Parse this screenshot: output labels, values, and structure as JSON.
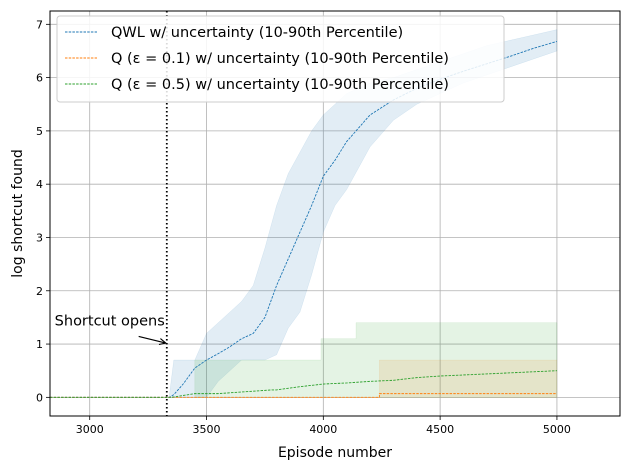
{
  "chart_data": {
    "type": "line",
    "xlabel": "Episode number",
    "ylabel": "log shortcut found",
    "xlim": [
      2830,
      5270
    ],
    "ylim": [
      -0.35,
      7.25
    ],
    "xticks": [
      3000,
      3500,
      4000,
      4500,
      5000
    ],
    "yticks": [
      0,
      1,
      2,
      3,
      4,
      5,
      6,
      7
    ],
    "grid": true,
    "legend_position": "top-left",
    "vline": {
      "x": 3330,
      "style": "dotted",
      "color": "#000000"
    },
    "annotation": {
      "text": "Shortcut opens",
      "x": 3330,
      "y": 1.0,
      "text_x": 2850,
      "text_y": 1.35
    },
    "series": [
      {
        "name": "QWL w/ uncertainty (10-90th Percentile)",
        "color": "#1f77b4",
        "x": [
          2830,
          3340,
          3360,
          3400,
          3450,
          3500,
          3550,
          3600,
          3650,
          3700,
          3750,
          3800,
          3850,
          3900,
          3950,
          4000,
          4050,
          4100,
          4150,
          4200,
          4300,
          4400,
          4500,
          4600,
          4700,
          4800,
          4900,
          5000
        ],
        "y": [
          0,
          0,
          0.05,
          0.25,
          0.55,
          0.7,
          0.82,
          0.95,
          1.1,
          1.2,
          1.5,
          2.1,
          2.6,
          3.1,
          3.6,
          4.15,
          4.45,
          4.8,
          5.05,
          5.3,
          5.58,
          5.8,
          5.97,
          6.12,
          6.26,
          6.4,
          6.55,
          6.68
        ],
        "band_x": [
          3340,
          3360,
          3400,
          3450,
          3500,
          3550,
          3600,
          3650,
          3700,
          3750,
          3800,
          3850,
          3900,
          3950,
          4000,
          4050,
          4100,
          4150,
          4200,
          4300,
          4400,
          4500,
          4600,
          4700,
          4800,
          4900,
          5000
        ],
        "band_low": [
          0,
          0,
          0,
          0,
          0,
          0.3,
          0.5,
          0.7,
          0.7,
          0.7,
          0.8,
          1.3,
          1.6,
          2.3,
          3.1,
          3.6,
          3.9,
          4.3,
          4.7,
          5.2,
          5.5,
          5.7,
          5.9,
          6.05,
          6.2,
          6.35,
          6.5
        ],
        "band_high": [
          0,
          0.7,
          0.7,
          0.7,
          1.2,
          1.4,
          1.6,
          1.8,
          2.1,
          2.8,
          3.6,
          4.2,
          4.6,
          5.0,
          5.3,
          5.5,
          5.7,
          5.8,
          5.9,
          6.0,
          6.15,
          6.3,
          6.45,
          6.6,
          6.7,
          6.8,
          6.9
        ]
      },
      {
        "name": "Q (ε = 0.1) w/ uncertainty (10-90th Percentile)",
        "color": "#ff7f0e",
        "x": [
          2830,
          4240,
          4240,
          5000
        ],
        "y": [
          0,
          0,
          0.07,
          0.07
        ],
        "band_x": [
          3450,
          4240,
          4240,
          5000
        ],
        "band_low": [
          0,
          0,
          0,
          0
        ],
        "band_high": [
          0,
          0,
          0.7,
          0.7
        ]
      },
      {
        "name": "Q (ε = 0.5) w/ uncertainty (10-90th Percentile)",
        "color": "#2ca02c",
        "x": [
          2830,
          3350,
          3450,
          3550,
          3780,
          3800,
          3900,
          4000,
          4100,
          4200,
          4300,
          4400,
          4500,
          4600,
          4700,
          4800,
          4900,
          5000
        ],
        "y": [
          0,
          0,
          0.07,
          0.07,
          0.14,
          0.14,
          0.2,
          0.25,
          0.27,
          0.3,
          0.32,
          0.37,
          0.4,
          0.42,
          0.44,
          0.46,
          0.48,
          0.5
        ],
        "band_x": [
          3450,
          3450,
          3780,
          3780,
          3990,
          3990,
          4140,
          4140,
          5000
        ],
        "band_low": [
          0,
          0,
          0,
          0,
          0,
          0,
          0,
          0,
          0
        ],
        "band_high": [
          0,
          0.7,
          0.7,
          0.7,
          0.7,
          1.1,
          1.1,
          1.4,
          1.4
        ]
      }
    ]
  }
}
